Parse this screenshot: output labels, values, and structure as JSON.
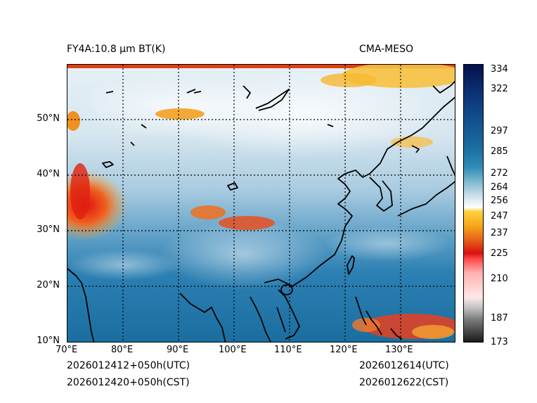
{
  "header": {
    "product_title": "FY4A:10.8 μm BT(K)",
    "model_name": "CMA-MESO"
  },
  "map": {
    "lat_labels": [
      "50°N",
      "40°N",
      "30°N",
      "20°N",
      "10°N"
    ],
    "lon_labels": [
      "70°E",
      "80°E",
      "90°E",
      "100°E",
      "110°E",
      "120°E",
      "130°E"
    ],
    "lat_range": [
      10,
      60
    ],
    "lon_range": [
      70,
      140
    ],
    "gridlines": "dotted"
  },
  "colorbar": {
    "unit": "K",
    "ticks": [
      "334",
      "322",
      "297",
      "285",
      "272",
      "264",
      "256",
      "247",
      "237",
      "225",
      "210",
      "187",
      "173"
    ]
  },
  "footer": {
    "init_utc": "2026012412+050h(UTC)",
    "init_cst": "2026012420+050h(CST)",
    "valid_utc": "2026012614(UTC)",
    "valid_cst": "2026012622(CST)"
  }
}
